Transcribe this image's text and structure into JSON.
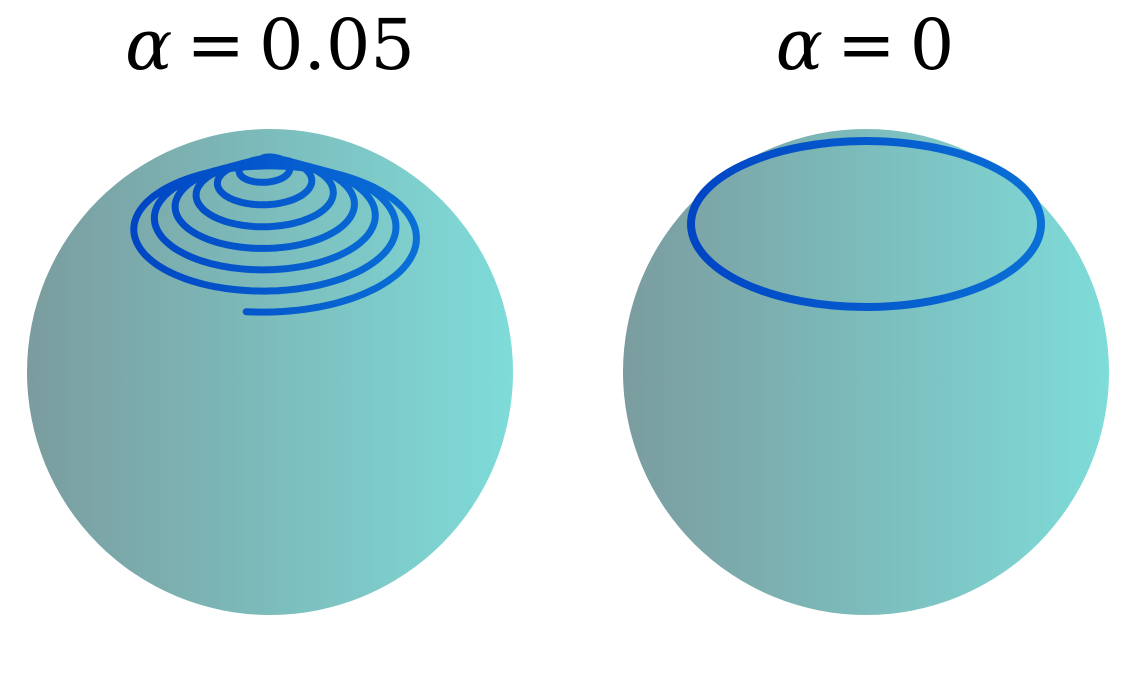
{
  "panels": [
    {
      "symbol": "α",
      "equals": "=",
      "value": "0.05",
      "trajectory": "spiral"
    },
    {
      "symbol": "α",
      "equals": "=",
      "value": "0",
      "trajectory": "circle"
    }
  ],
  "colors": {
    "sphere_left": "#7b9c9f",
    "sphere_right": "#7edcd9",
    "curve_dark": "#0045c4",
    "curve_light": "#0a6fd6",
    "background": "#ffffff"
  }
}
